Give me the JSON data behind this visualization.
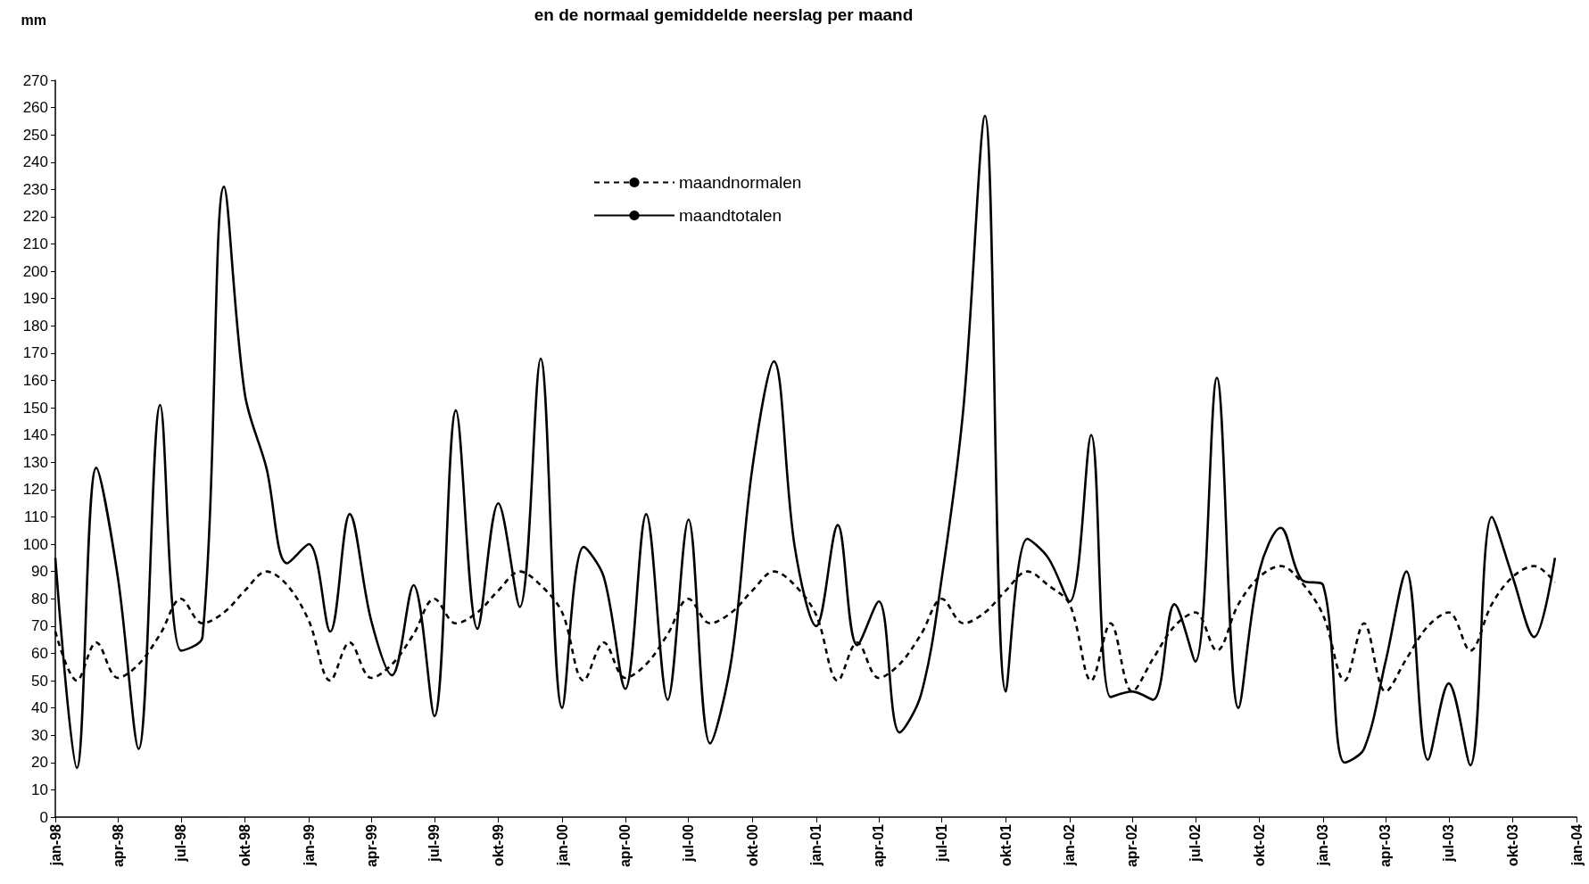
{
  "chart_data": {
    "type": "line",
    "title": "en de normaal gemiddelde neerslag per maand",
    "ylabel": "mm",
    "x": [
      "1998-01",
      "1998-02",
      "1998-03",
      "1998-04",
      "1998-05",
      "1998-06",
      "1998-07",
      "1998-08",
      "1998-09",
      "1998-10",
      "1998-11",
      "1998-12",
      "1999-01",
      "1999-02",
      "1999-03",
      "1999-04",
      "1999-05",
      "1999-06",
      "1999-07",
      "1999-08",
      "1999-09",
      "1999-10",
      "1999-11",
      "1999-12",
      "2000-01",
      "2000-02",
      "2000-03",
      "2000-04",
      "2000-05",
      "2000-06",
      "2000-07",
      "2000-08",
      "2000-09",
      "2000-10",
      "2000-11",
      "2000-12",
      "2001-01",
      "2001-02",
      "2001-03",
      "2001-04",
      "2001-05",
      "2001-06",
      "2001-07",
      "2001-08",
      "2001-09",
      "2001-10",
      "2001-11",
      "2001-12",
      "2002-01",
      "2002-02",
      "2002-03",
      "2002-04",
      "2002-05",
      "2002-06",
      "2002-07",
      "2002-08",
      "2002-09",
      "2002-10",
      "2002-11",
      "2002-12",
      "2003-01",
      "2003-02",
      "2003-03",
      "2003-04",
      "2003-05",
      "2003-06",
      "2003-07",
      "2003-08",
      "2003-09",
      "2003-10",
      "2003-11",
      "2003-12"
    ],
    "series": [
      {
        "name": "maandnormalen",
        "color": "#000000",
        "line_style": "dashed",
        "values": [
          68,
          50,
          64,
          51,
          56,
          67,
          80,
          71,
          75,
          83,
          90,
          85,
          72,
          50,
          64,
          51,
          56,
          67,
          80,
          71,
          75,
          83,
          90,
          85,
          75,
          50,
          64,
          51,
          56,
          67,
          80,
          71,
          75,
          83,
          90,
          85,
          74,
          50,
          64,
          51,
          56,
          67,
          80,
          71,
          75,
          83,
          90,
          85,
          78,
          50,
          71,
          46,
          58,
          70,
          75,
          61,
          78,
          88,
          92,
          86,
          74,
          50,
          71,
          46,
          58,
          70,
          75,
          61,
          78,
          88,
          92,
          86
        ]
      },
      {
        "name": "maandtotalen",
        "color": "#000000",
        "line_style": "solid",
        "values": [
          95,
          18,
          128,
          88,
          25,
          151,
          61,
          66,
          231,
          155,
          128,
          93,
          100,
          68,
          111,
          72,
          52,
          85,
          37,
          149,
          69,
          115,
          77,
          168,
          40,
          99,
          88,
          47,
          111,
          43,
          109,
          27,
          58,
          128,
          167,
          99,
          70,
          107,
          63,
          79,
          31,
          45,
          88,
          150,
          257,
          46,
          102,
          95,
          79,
          140,
          44,
          46,
          43,
          78,
          57,
          161,
          40,
          90,
          106,
          87,
          85,
          20,
          25,
          57,
          90,
          21,
          49,
          19,
          110,
          88,
          66,
          95
        ]
      }
    ],
    "xlim": [
      "1998-01",
      "2004-01"
    ],
    "xticks": [
      {
        "value": "1998-01",
        "label": "jan-98"
      },
      {
        "value": "1998-04",
        "label": "apr-98"
      },
      {
        "value": "1998-07",
        "label": "jul-98"
      },
      {
        "value": "1998-10",
        "label": "okt-98"
      },
      {
        "value": "1999-01",
        "label": "jan-99"
      },
      {
        "value": "1999-04",
        "label": "apr-99"
      },
      {
        "value": "1999-07",
        "label": "jul-99"
      },
      {
        "value": "1999-10",
        "label": "okt-99"
      },
      {
        "value": "2000-01",
        "label": "jan-00"
      },
      {
        "value": "2000-04",
        "label": "apr-00"
      },
      {
        "value": "2000-07",
        "label": "jul-00"
      },
      {
        "value": "2000-10",
        "label": "okt-00"
      },
      {
        "value": "2001-01",
        "label": "jan-01"
      },
      {
        "value": "2001-04",
        "label": "apr-01"
      },
      {
        "value": "2001-07",
        "label": "jul-01"
      },
      {
        "value": "2001-10",
        "label": "okt-01"
      },
      {
        "value": "2002-01",
        "label": "jan-02"
      },
      {
        "value": "2002-04",
        "label": "apr-02"
      },
      {
        "value": "2002-07",
        "label": "jul-02"
      },
      {
        "value": "2002-10",
        "label": "okt-02"
      },
      {
        "value": "2003-01",
        "label": "jan-03"
      },
      {
        "value": "2003-04",
        "label": "apr-03"
      },
      {
        "value": "2003-07",
        "label": "jul-03"
      },
      {
        "value": "2003-10",
        "label": "okt-03"
      },
      {
        "value": "2004-01",
        "label": "jan-04"
      }
    ],
    "ylim": [
      0,
      270
    ],
    "yticks": [
      0,
      10,
      20,
      30,
      40,
      50,
      60,
      70,
      80,
      90,
      100,
      110,
      120,
      130,
      140,
      150,
      160,
      170,
      180,
      190,
      200,
      210,
      220,
      230,
      240,
      250,
      260,
      270
    ],
    "grid": false,
    "legend": "top",
    "marker": "none"
  }
}
